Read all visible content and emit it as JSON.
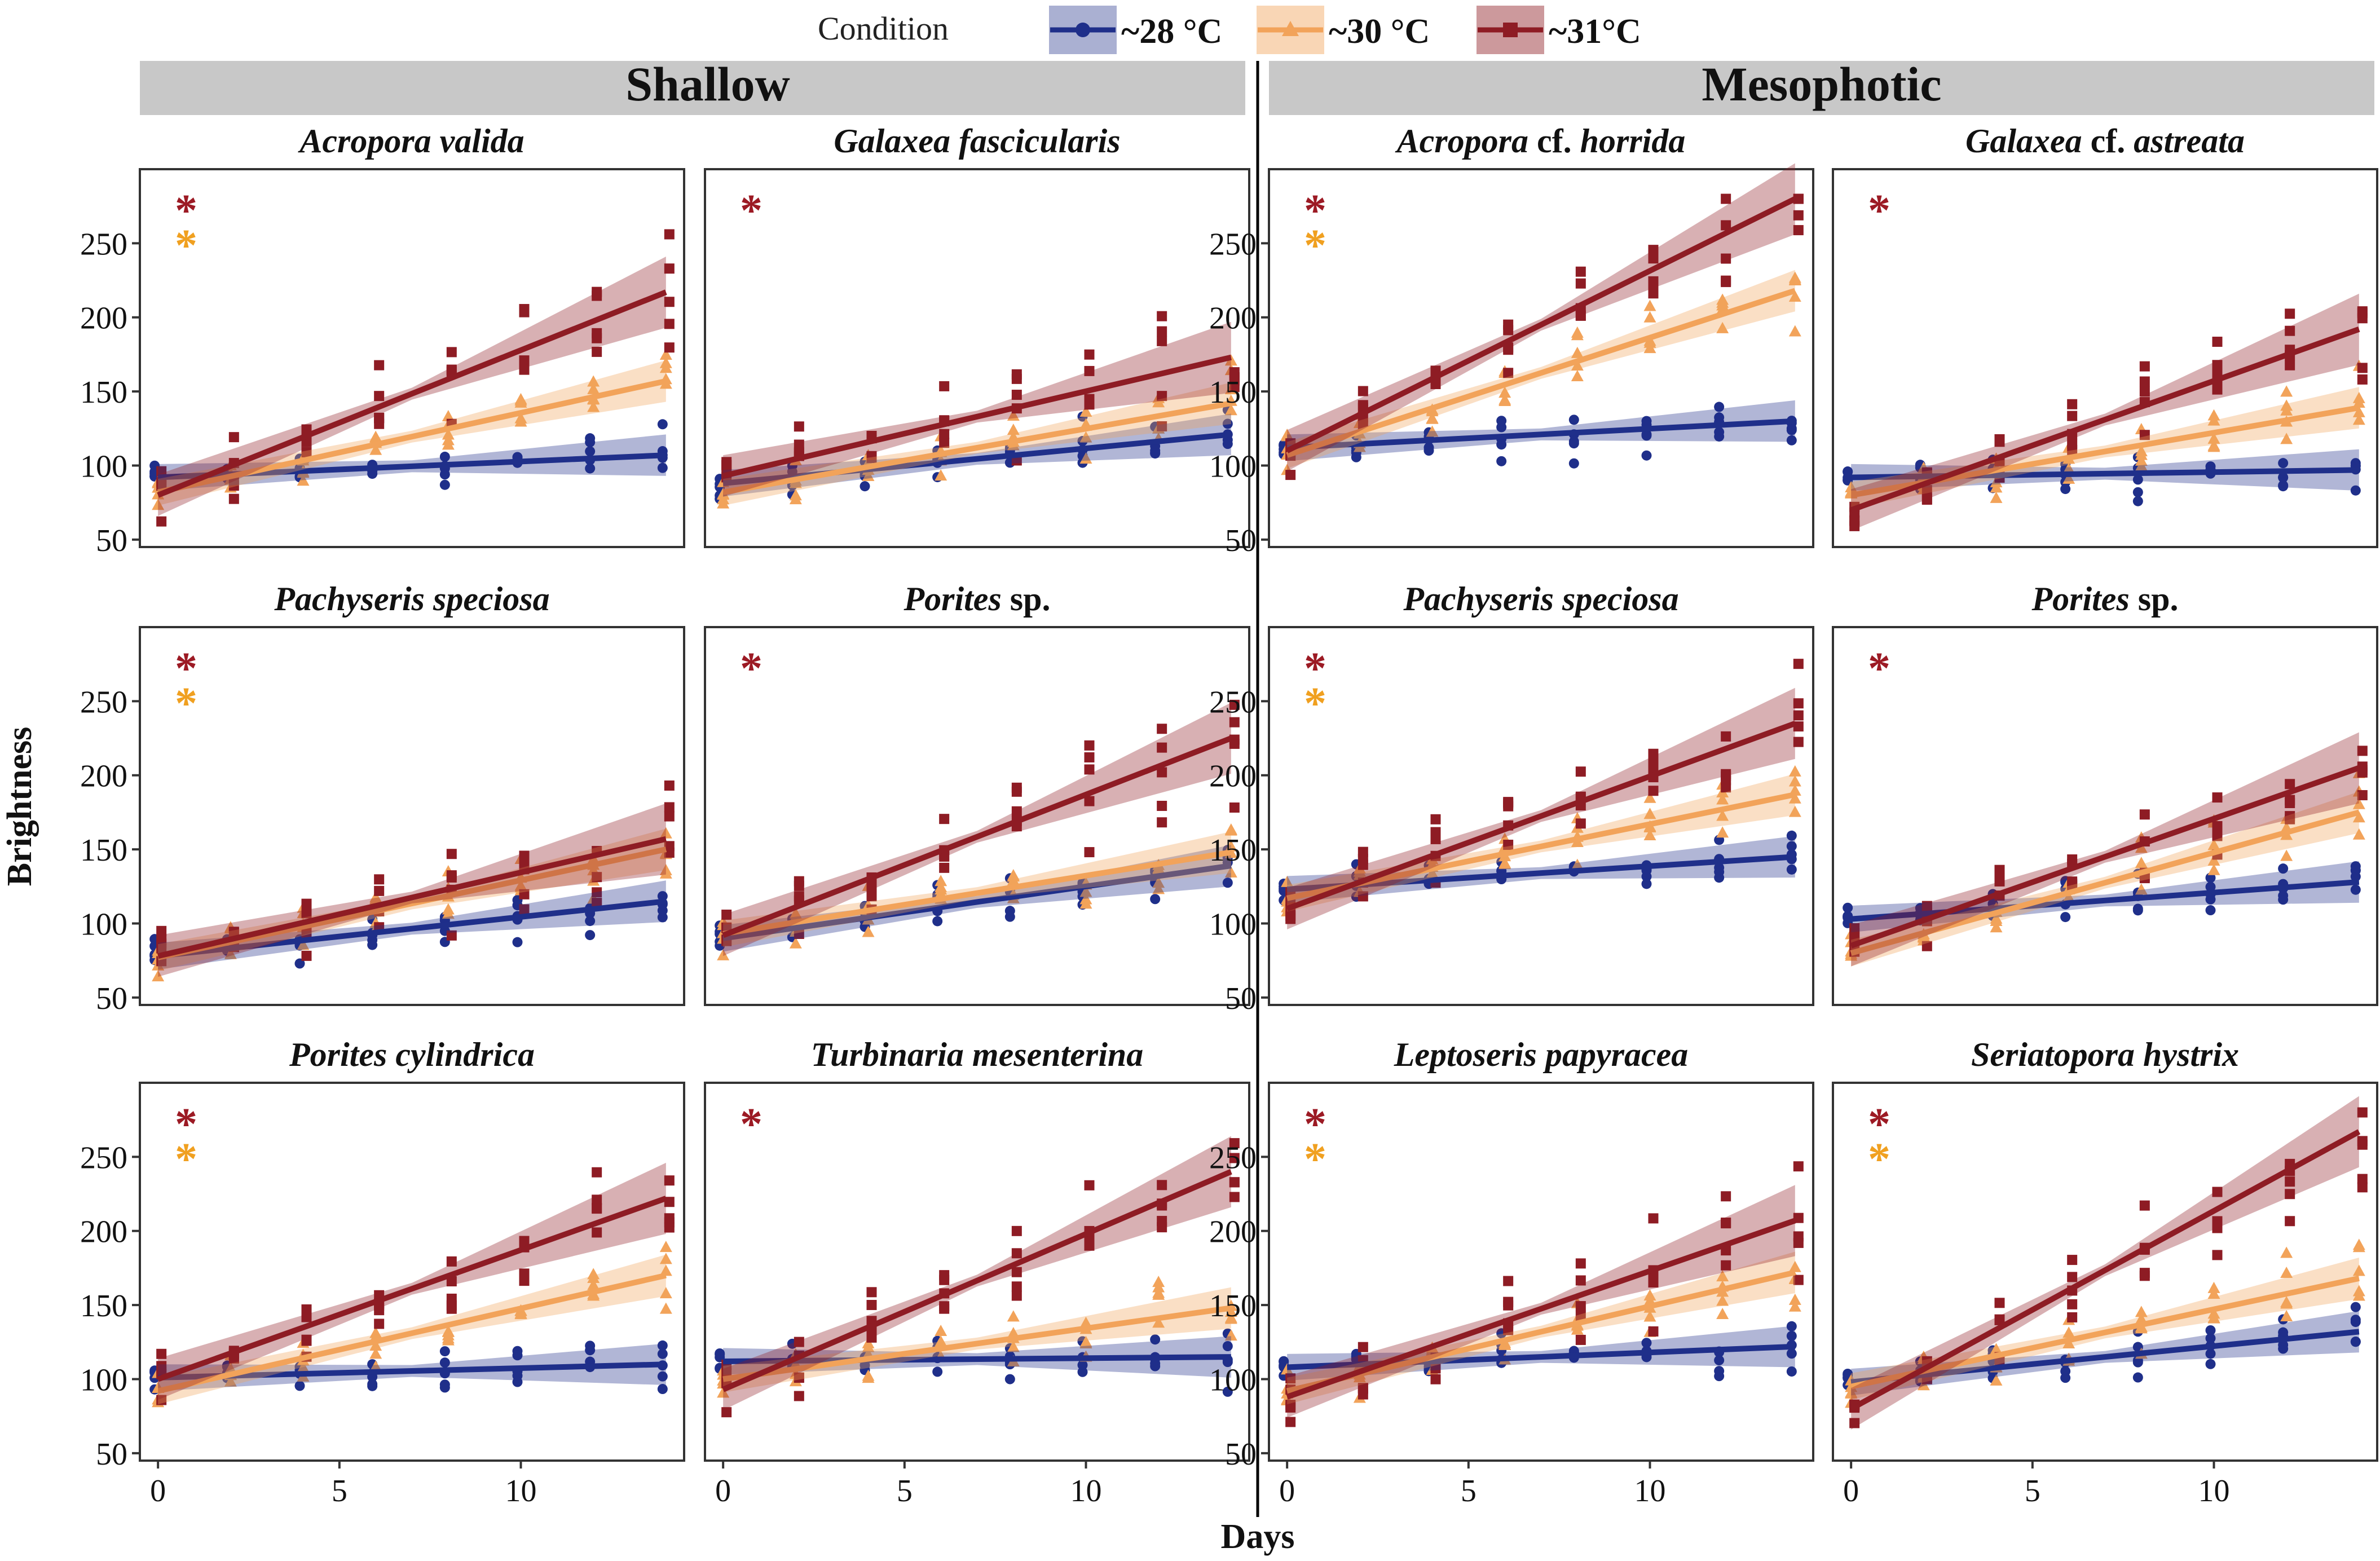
{
  "legend": {
    "title": "Condition",
    "entries": [
      "~28 °C",
      "~30 °C",
      "~31°C"
    ]
  },
  "colors": {
    "c28": "#1f2f8a",
    "c30": "#f2a35a",
    "c31": "#8e1c24",
    "star31": "#9c1a24",
    "star30": "#f0a020",
    "strip": "#c8c8c8",
    "panel_border": "#333333",
    "axis_text": "#111111"
  },
  "groups": [
    "Shallow",
    "Mesophotic"
  ],
  "axes": {
    "xlabel": "Days",
    "ylabel": "Brightness",
    "xlim": [
      -0.5,
      14.5
    ],
    "ylim": [
      45,
      300
    ],
    "xticks": [
      0,
      5,
      10
    ],
    "yticks": [
      50,
      100,
      150,
      200,
      250
    ]
  },
  "chart_data": {
    "type": "scatter",
    "days": [
      0,
      2,
      4,
      6,
      8,
      10,
      12,
      14
    ],
    "series_names": [
      "~28 °C",
      "~30 °C",
      "~31°C"
    ],
    "panels": [
      {
        "title": [
          {
            "t": "Acropora valida",
            "i": true
          }
        ],
        "stars": [
          "31",
          "30"
        ],
        "fits": {
          "c28": [
            92,
            107
          ],
          "c30": [
            82,
            157
          ],
          "c31": [
            80,
            217
          ]
        }
      },
      {
        "title": [
          {
            "t": "Galaxea fascicularis",
            "i": true
          }
        ],
        "stars": [
          "31"
        ],
        "fits": {
          "c28": [
            88,
            121
          ],
          "c30": [
            82,
            142
          ],
          "c31": [
            93,
            173
          ]
        }
      },
      {
        "title": [
          {
            "t": "Acropora",
            "i": true
          },
          {
            "t": " cf. ",
            "i": false
          },
          {
            "t": "horrida",
            "i": true
          }
        ],
        "stars": [
          "31",
          "30"
        ],
        "fits": {
          "c28": [
            112,
            130
          ],
          "c30": [
            107,
            218
          ],
          "c31": [
            110,
            280
          ]
        }
      },
      {
        "title": [
          {
            "t": "Galaxea",
            "i": true
          },
          {
            "t": " cf. ",
            "i": false
          },
          {
            "t": "astreata",
            "i": true
          }
        ],
        "stars": [
          "31"
        ],
        "fits": {
          "c28": [
            92,
            97
          ],
          "c30": [
            80,
            139
          ],
          "c31": [
            70,
            192
          ]
        }
      },
      {
        "title": [
          {
            "t": "Pachyseris speciosa",
            "i": true
          }
        ],
        "stars": [
          "31",
          "30"
        ],
        "fits": {
          "c28": [
            78,
            115
          ],
          "c30": [
            77,
            150
          ],
          "c31": [
            78,
            157
          ]
        }
      },
      {
        "title": [
          {
            "t": "Porites",
            "i": true
          },
          {
            "t": " sp.",
            "i": false
          }
        ],
        "stars": [
          "31"
        ],
        "fits": {
          "c28": [
            90,
            139
          ],
          "c30": [
            93,
            148
          ],
          "c31": [
            92,
            225
          ]
        }
      },
      {
        "title": [
          {
            "t": "Pachyseris speciosa",
            "i": true
          }
        ],
        "stars": [
          "31",
          "30"
        ],
        "fits": {
          "c28": [
            123,
            145
          ],
          "c30": [
            117,
            187
          ],
          "c31": [
            110,
            235
          ]
        }
      },
      {
        "title": [
          {
            "t": "Porites",
            "i": true
          },
          {
            "t": " sp.",
            "i": false
          }
        ],
        "stars": [
          "31"
        ],
        "fits": {
          "c28": [
            103,
            128
          ],
          "c30": [
            80,
            175
          ],
          "c31": [
            85,
            205
          ]
        }
      },
      {
        "title": [
          {
            "t": "Porites cylindrica",
            "i": true
          }
        ],
        "stars": [
          "31",
          "30"
        ],
        "fits": {
          "c28": [
            101,
            110
          ],
          "c30": [
            92,
            170
          ],
          "c31": [
            100,
            222
          ]
        }
      },
      {
        "title": [
          {
            "t": "Turbinaria mesenterina",
            "i": true
          }
        ],
        "stars": [
          "31"
        ],
        "fits": {
          "c28": [
            112,
            115
          ],
          "c30": [
            100,
            148
          ],
          "c31": [
            93,
            240
          ]
        }
      },
      {
        "title": [
          {
            "t": "Leptoseris papyracea",
            "i": true
          }
        ],
        "stars": [
          "31",
          "30"
        ],
        "fits": {
          "c28": [
            108,
            122
          ],
          "c30": [
            92,
            172
          ],
          "c31": [
            88,
            207
          ]
        }
      },
      {
        "title": [
          {
            "t": "Seriatopora hystrix",
            "i": true
          }
        ],
        "stars": [
          "31",
          "30"
        ],
        "fits": {
          "c28": [
            98,
            132
          ],
          "c30": [
            95,
            168
          ],
          "c31": [
            80,
            267
          ]
        }
      }
    ]
  }
}
